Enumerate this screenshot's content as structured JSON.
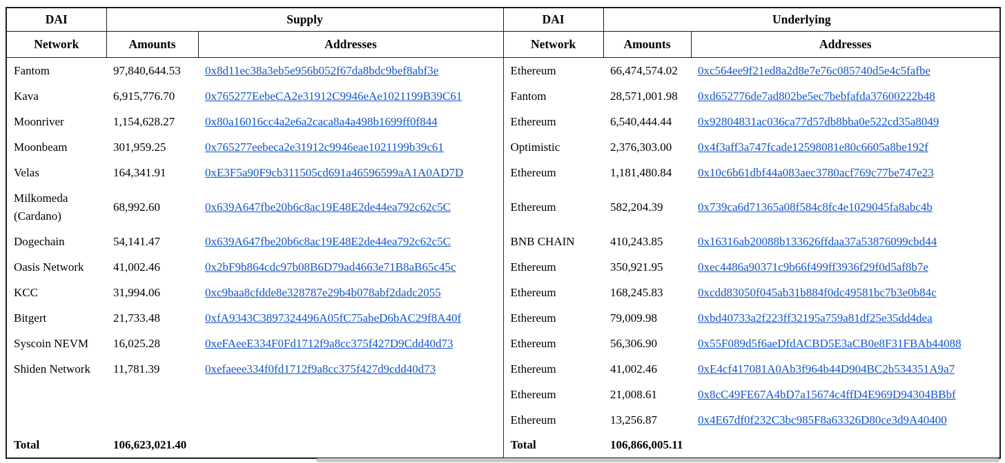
{
  "left_table": {
    "title": "DAI",
    "group_header": "Supply",
    "columns": [
      "Network",
      "Amounts",
      "Addresses"
    ],
    "rows": [
      {
        "network": "Fantom",
        "amount": "97,840,644.53",
        "address": "0x8d11ec38a3eb5e956b052f67da8bdc9bef8abf3e"
      },
      {
        "network": "Kava",
        "amount": "6,915,776.70",
        "address": "0x765277EebeCA2e31912C9946eAe1021199B39C61"
      },
      {
        "network": "Moonriver",
        "amount": "1,154,628.27",
        "address": "0x80a16016cc4a2e6a2caca8a4a498b1699ff0f844"
      },
      {
        "network": "Moonbeam",
        "amount": "301,959.25",
        "address": "0x765277eebeca2e31912c9946eae1021199b39c61"
      },
      {
        "network": "Velas",
        "amount": "164,341.91",
        "address": "0xE3F5a90F9cb311505cd691a46596599aA1A0AD7D"
      },
      {
        "network": "Milkomeda (Cardano)",
        "amount": "68,992.60",
        "address": "0x639A647fbe20b6c8ac19E48E2de44ea792c62c5C"
      },
      {
        "network": "Dogechain",
        "amount": "54,141.47",
        "address": "0x639A647fbe20b6c8ac19E48E2de44ea792c62c5C"
      },
      {
        "network": "Oasis Network",
        "amount": "41,002.46",
        "address": "0x2bF9b864cdc97b08B6D79ad4663e71B8aB65c45c"
      },
      {
        "network": "KCC",
        "amount": "31,994.06",
        "address": "0xc9baa8cfdde8e328787e29b4b078abf2dadc2055"
      },
      {
        "network": "Bitgert",
        "amount": "21,733.48",
        "address": "0xfA9343C3897324496A05fC75abeD6bAC29f8A40f"
      },
      {
        "network": "Syscoin NEVM",
        "amount": "16,025.28",
        "address": "0xeFAeeE334F0Fd1712f9a8cc375f427D9Cdd40d73"
      },
      {
        "network": "Shiden Network",
        "amount": "11,781.39",
        "address": "0xefaeee334f0fd1712f9a8cc375f427d9cdd40d73"
      }
    ],
    "total_label": "Total",
    "total": "106,623,021.40"
  },
  "right_table": {
    "title": "DAI",
    "group_header": "Underlying",
    "columns": [
      "Network",
      "Amounts",
      "Addresses"
    ],
    "rows": [
      {
        "network": "Ethereum",
        "amount": "66,474,574.02",
        "address": "0xc564ee9f21ed8a2d8e7e76c085740d5e4c5fafbe"
      },
      {
        "network": "Fantom",
        "amount": "28,571,001.98",
        "address": "0xd652776de7ad802be5ec7bebfafda37600222b48"
      },
      {
        "network": "Ethereum",
        "amount": "6,540,444.44",
        "address": "0x92804831ac036ca77d57db8bba0e522cd35a8049"
      },
      {
        "network": "Optimistic",
        "amount": "2,376,303.00",
        "address": "0x4f3aff3a747fcade12598081e80c6605a8be192f"
      },
      {
        "network": "Ethereum",
        "amount": "1,181,480.84",
        "address": "0x10c6b61dbf44a083aec3780acf769c77be747e23"
      },
      {
        "network": "Ethereum",
        "amount": "582,204.39",
        "address": "0x739ca6d71365a08f584c8fc4e1029045fa8abc4b"
      },
      {
        "network": "BNB CHAIN",
        "amount": "410,243.85",
        "address": "0x16316ab20088b133626ffdaa37a53876099cbd44"
      },
      {
        "network": "Ethereum",
        "amount": "350,921.95",
        "address": "0xec4486a90371c9b66f499ff3936f29f0d5af8b7e"
      },
      {
        "network": "Ethereum",
        "amount": "168,245.83",
        "address": "0xcdd83050f045ab31b884f0dc49581bc7b3e0b84c"
      },
      {
        "network": "Ethereum",
        "amount": "79,009.98",
        "address": "0xbd40733a2f223ff32195a759a81df25e35dd4dea"
      },
      {
        "network": "Ethereum",
        "amount": "56,306.90",
        "address": "0x55F089d5f6aeDfdACBD5E3aCB0e8F31FBAb44088"
      },
      {
        "network": "Ethereum",
        "amount": "41,002.46",
        "address": "0xE4cf417081A0Ab3f964b44D904BC2b534351A9a7"
      },
      {
        "network": "Ethereum",
        "amount": "21,008.61",
        "address": "0x8cC49FE67A4bD7a15674c4ffD4E969D94304BBbf"
      },
      {
        "network": "Ethereum",
        "amount": "13,256.87",
        "address": "0x4E67df0f232C3bc985F8a63326D80ce3d9A40400"
      }
    ],
    "total_label": "Total",
    "total": "106,866,005.11"
  },
  "colors": {
    "link_blue": "#1155cc",
    "border": "#1b1b1b",
    "text": "#000000",
    "background": "#ffffff"
  }
}
